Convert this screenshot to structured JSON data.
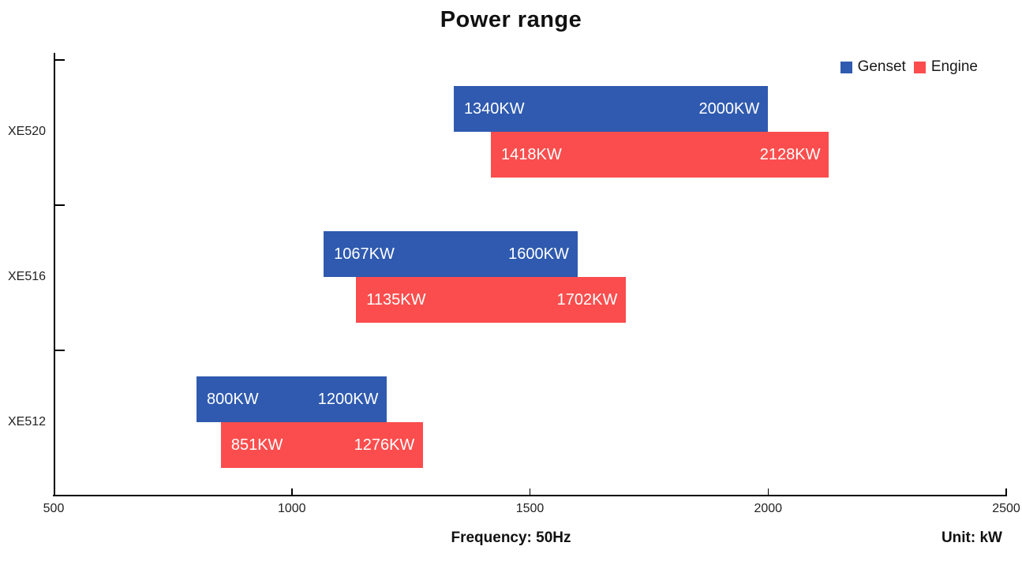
{
  "title": "Power range",
  "legend": {
    "items": [
      {
        "label": "Genset",
        "color": "#2F5AAF"
      },
      {
        "label": "Engine",
        "color": "#FB4D4D"
      }
    ]
  },
  "footer": {
    "frequency_label": "Frequency: 50Hz",
    "unit_label": "Unit: kW"
  },
  "chart_data": {
    "type": "bar",
    "subtype": "horizontal-range-bars",
    "title": "Power range",
    "categories": [
      "XE520",
      "XE516",
      "XE512"
    ],
    "series": [
      {
        "name": "Genset",
        "color": "#2F5AAF",
        "ranges": [
          [
            1340,
            2000
          ],
          [
            1067,
            1600
          ],
          [
            800,
            1200
          ]
        ]
      },
      {
        "name": "Engine",
        "color": "#FB4D4D",
        "ranges": [
          [
            1418,
            2128
          ],
          [
            1135,
            1702
          ],
          [
            851,
            1276
          ]
        ]
      }
    ],
    "value_suffix": "KW",
    "xlim": [
      500,
      2500
    ],
    "x_ticks": [
      500,
      1000,
      1500,
      2000,
      2500
    ],
    "grid": false,
    "legend_position": "top-right",
    "xlabel": "Frequency: 50Hz",
    "unit": "Unit: kW"
  }
}
